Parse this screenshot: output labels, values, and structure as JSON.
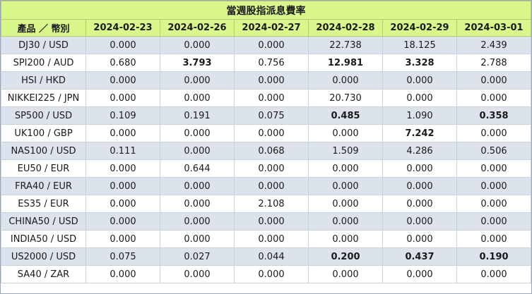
{
  "title": "當週股指派息費率",
  "header": {
    "product": "產品 ／ 幣別",
    "dates": [
      "2024-02-23",
      "2024-02-26",
      "2024-02-27",
      "2024-02-28",
      "2024-02-29",
      "2024-03-01"
    ]
  },
  "rows": [
    {
      "name": "DJ30 / USD",
      "values": [
        "0.000",
        "0.000",
        "0.000",
        "22.738",
        "18.125",
        "2.439"
      ],
      "bold": []
    },
    {
      "name": "SPI200 / AUD",
      "values": [
        "0.680",
        "3.793",
        "0.756",
        "12.981",
        "3.328",
        "2.788"
      ],
      "bold": [
        1,
        3,
        4
      ]
    },
    {
      "name": "HSI / HKD",
      "values": [
        "0.000",
        "0.000",
        "0.000",
        "0.000",
        "0.000",
        "0.000"
      ],
      "bold": []
    },
    {
      "name": "NIKKEI225 / JPN",
      "values": [
        "0.000",
        "0.000",
        "0.000",
        "20.730",
        "0.000",
        "0.000"
      ],
      "bold": []
    },
    {
      "name": "SP500 / USD",
      "values": [
        "0.109",
        "0.191",
        "0.075",
        "0.485",
        "1.090",
        "0.358"
      ],
      "bold": [
        3,
        5
      ]
    },
    {
      "name": "UK100 / GBP",
      "values": [
        "0.000",
        "0.000",
        "0.000",
        "0.000",
        "7.242",
        "0.000"
      ],
      "bold": [
        4
      ]
    },
    {
      "name": "NAS100 / USD",
      "values": [
        "0.111",
        "0.000",
        "0.068",
        "1.509",
        "4.286",
        "0.506"
      ],
      "bold": []
    },
    {
      "name": "EU50 / EUR",
      "values": [
        "0.000",
        "0.644",
        "0.000",
        "0.000",
        "0.000",
        "0.000"
      ],
      "bold": []
    },
    {
      "name": "FRA40 / EUR",
      "values": [
        "0.000",
        "0.000",
        "0.000",
        "0.000",
        "0.000",
        "0.000"
      ],
      "bold": []
    },
    {
      "name": "ES35 / EUR",
      "values": [
        "0.000",
        "0.000",
        "2.108",
        "0.000",
        "0.000",
        "0.000"
      ],
      "bold": []
    },
    {
      "name": "CHINA50 / USD",
      "values": [
        "0.000",
        "0.000",
        "0.000",
        "0.000",
        "0.000",
        "0.000"
      ],
      "bold": []
    },
    {
      "name": "INDIA50 / USD",
      "values": [
        "0.000",
        "0.000",
        "0.000",
        "0.000",
        "0.000",
        "0.000"
      ],
      "bold": []
    },
    {
      "name": "US2000 / USD",
      "values": [
        "0.075",
        "0.027",
        "0.044",
        "0.200",
        "0.437",
        "0.190"
      ],
      "bold": [
        3,
        4,
        5
      ]
    },
    {
      "name": "SA40 / ZAR",
      "values": [
        "0.000",
        "0.000",
        "0.000",
        "0.000",
        "0.000",
        "0.000"
      ],
      "bold": []
    }
  ],
  "colors": {
    "header_bg": "#d9f78a",
    "row_alt_bg": "#dde3ec",
    "row_bg": "#ffffff"
  }
}
